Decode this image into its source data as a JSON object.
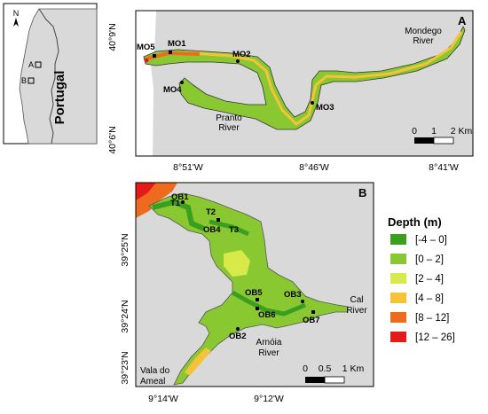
{
  "inset": {
    "north_label": "N",
    "country_label": "Portugal",
    "box_a_label": "A",
    "box_b_label": "B"
  },
  "panel_a": {
    "letter": "A",
    "lat_ticks": [
      "40°9'N",
      "40°6'N"
    ],
    "lon_ticks": [
      "8°51'W",
      "8°46'W",
      "8°41'W"
    ],
    "stations": [
      "MO5",
      "MO1",
      "MO2",
      "MO4",
      "MO3"
    ],
    "rivers": {
      "mondego_line1": "Mondego",
      "mondego_line2": "River",
      "pranto_line1": "Pranto",
      "pranto_line2": "River"
    },
    "scale": {
      "labels": [
        "0",
        "1",
        "2 Km"
      ]
    }
  },
  "panel_b": {
    "letter": "B",
    "lat_ticks": [
      "39°25'N",
      "39°24'N",
      "39°23'N"
    ],
    "lon_ticks": [
      "9°14'W",
      "9°12'W"
    ],
    "stations": [
      "OB1",
      "T1",
      "T2",
      "OB4",
      "T3",
      "OB5",
      "OB3",
      "OB6",
      "OB7",
      "OB2"
    ],
    "rivers": {
      "cal_line1": "Cal",
      "cal_line2": "River",
      "arnoia_line1": "Arnóia",
      "arnoia_line2": "River",
      "vala_line1": "Vala do",
      "vala_line2": "Ameal"
    },
    "scale": {
      "labels": [
        "0",
        "0.5",
        "1 Km"
      ]
    }
  },
  "legend": {
    "title": "Depth (m)",
    "items": [
      {
        "label": "[-4 – 0]",
        "color": "#3a9e1f"
      },
      {
        "label": "[0 – 2]",
        "color": "#8ac832"
      },
      {
        "label": "[2 – 4]",
        "color": "#d8ea4a"
      },
      {
        "label": "[4 – 8]",
        "color": "#f5c23a"
      },
      {
        "label": "[8 – 12]",
        "color": "#ee6a1e"
      },
      {
        "label": "[12 – 26]",
        "color": "#e41a1a"
      }
    ]
  },
  "colors": {
    "land": "#d9d9d9",
    "sea": "#ffffff",
    "frame": "#000000"
  }
}
